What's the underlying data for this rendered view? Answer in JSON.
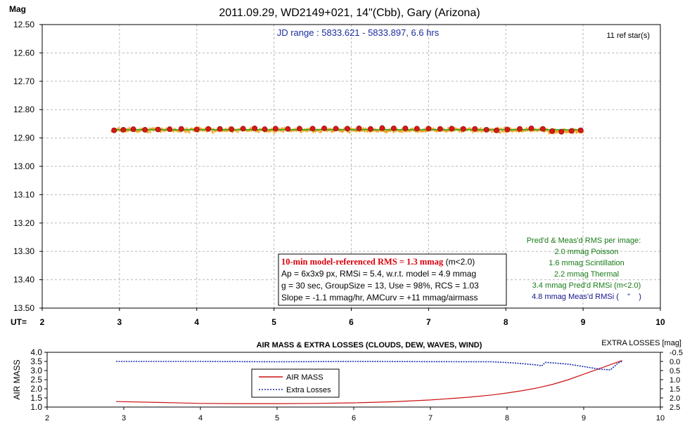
{
  "chart_data": [
    {
      "type": "scatter",
      "title": "2011.09.29, WD2149+021, 14\"(Cbb), Gary (Arizona)",
      "subtitle": "JD range : 5833.621 - 5833.897, 6.6 hrs",
      "ylabel": "Mag",
      "xlabel": "UT=",
      "xlim": [
        2,
        10
      ],
      "ylim": [
        12.5,
        13.5
      ],
      "y_inverted": true,
      "grid": true,
      "x_ticks": [
        "2",
        "3",
        "4",
        "5",
        "6",
        "7",
        "8",
        "9",
        "10"
      ],
      "y_ticks": [
        "12.50",
        "12.60",
        "12.70",
        "12.80",
        "12.90",
        "13.00",
        "13.10",
        "13.20",
        "13.30",
        "13.40",
        "13.50"
      ],
      "ref_stars_note": "11 ref star(s)",
      "series": [
        {
          "role": "individual-measurements",
          "color": "#f0a020",
          "x_range": [
            2.9,
            9.0
          ],
          "mean_mag": 12.872,
          "rms_mag": 0.0048
        },
        {
          "role": "10-min-averages",
          "color": "#d81818",
          "x": [
            2.93,
            3.05,
            3.18,
            3.33,
            3.5,
            3.65,
            3.8,
            4.0,
            4.15,
            4.3,
            4.45,
            4.6,
            4.75,
            4.88,
            5.02,
            5.18,
            5.33,
            5.5,
            5.65,
            5.8,
            5.95,
            6.1,
            6.25,
            6.4,
            6.55,
            6.7,
            6.85,
            7.0,
            7.15,
            7.3,
            7.45,
            7.6,
            7.75,
            7.88,
            8.02,
            8.18,
            8.33,
            8.48,
            8.6,
            8.72,
            8.85,
            8.97
          ],
          "y": [
            12.873,
            12.871,
            12.869,
            12.871,
            12.87,
            12.869,
            12.868,
            12.87,
            12.868,
            12.868,
            12.869,
            12.867,
            12.866,
            12.869,
            12.867,
            12.868,
            12.867,
            12.867,
            12.866,
            12.867,
            12.867,
            12.866,
            12.868,
            12.865,
            12.866,
            12.866,
            12.867,
            12.867,
            12.868,
            12.867,
            12.868,
            12.868,
            12.871,
            12.873,
            12.87,
            12.868,
            12.866,
            12.868,
            12.876,
            12.878,
            12.875,
            12.873
          ]
        },
        {
          "role": "model-fit",
          "color": "#22aa22",
          "x": [
            2.9,
            9.0
          ],
          "y": [
            12.871,
            12.871
          ]
        }
      ],
      "rms_panel": {
        "heading": "Pred'd & Meas'd RMS per image:",
        "lines": [
          "2.0 mmag Poisson",
          "1.6 mmag Scintillation",
          "2.2 mmag Thermal",
          "3.4 mmag Pred'd  RMSi (m<2.0)",
          "4.8 mmag Meas'd RMSi (    \"    )"
        ]
      },
      "summary_box": {
        "headline": "10-min model-referenced RMS = 1.3 mmag",
        "headline_suffix": " (m<2.0)",
        "lines": [
          "Ap = 6x3x9 px, RMSi = 5.4, w.r.t. model = 4.9 mmag",
          "g = 30 sec, GroupSize = 13, Use = 98%, RCS = 1.03",
          "Slope = -1.1 mmag/hr, AMCurv = +11 mmag/airmass"
        ]
      }
    },
    {
      "type": "line",
      "title": "AIR MASS & EXTRA LOSSES (CLOUDS, DEW, WAVES, WIND)",
      "ylabel": "AIR MASS",
      "y2label": "EXTRA LOSSES [mag]",
      "xlim": [
        2,
        10
      ],
      "ylim": [
        1.0,
        4.0
      ],
      "y2lim": [
        -0.5,
        2.5
      ],
      "y2_inverted": true,
      "grid": false,
      "legend_position": "center-left",
      "x_ticks": [
        "2",
        "3",
        "4",
        "5",
        "6",
        "7",
        "8",
        "9",
        "10"
      ],
      "y_ticks": [
        "4.0",
        "3.5",
        "3.0",
        "2.5",
        "2.0",
        "1.5",
        "1.0"
      ],
      "y2_ticks": [
        "-0.5",
        "0.0",
        "0.5",
        "1.0",
        "1.5",
        "2.0",
        "2.5"
      ],
      "series": [
        {
          "name": "AIR MASS",
          "color": "#cc1111",
          "x": [
            2.9,
            3.5,
            4.0,
            4.5,
            5.0,
            5.5,
            6.0,
            6.5,
            7.0,
            7.5,
            7.8,
            8.0,
            8.2,
            8.4,
            8.6,
            8.8,
            9.0,
            9.2,
            9.4,
            9.5
          ],
          "y": [
            1.3,
            1.25,
            1.2,
            1.19,
            1.19,
            1.2,
            1.23,
            1.29,
            1.39,
            1.54,
            1.66,
            1.77,
            1.9,
            2.05,
            2.25,
            2.5,
            2.8,
            3.1,
            3.4,
            3.55
          ]
        },
        {
          "name": "Extra Losses",
          "color": "#1a2bb0",
          "x": [
            2.9,
            4.0,
            5.0,
            6.0,
            7.0,
            7.8,
            8.0,
            8.2,
            8.4,
            8.45,
            8.5,
            8.6,
            8.8,
            9.0,
            9.2,
            9.35,
            9.45,
            9.5
          ],
          "y": [
            0.0,
            0.0,
            0.02,
            0.0,
            0.01,
            0.02,
            0.06,
            0.12,
            0.2,
            0.25,
            0.05,
            0.08,
            0.15,
            0.28,
            0.42,
            0.46,
            0.08,
            0.0
          ]
        }
      ]
    }
  ]
}
